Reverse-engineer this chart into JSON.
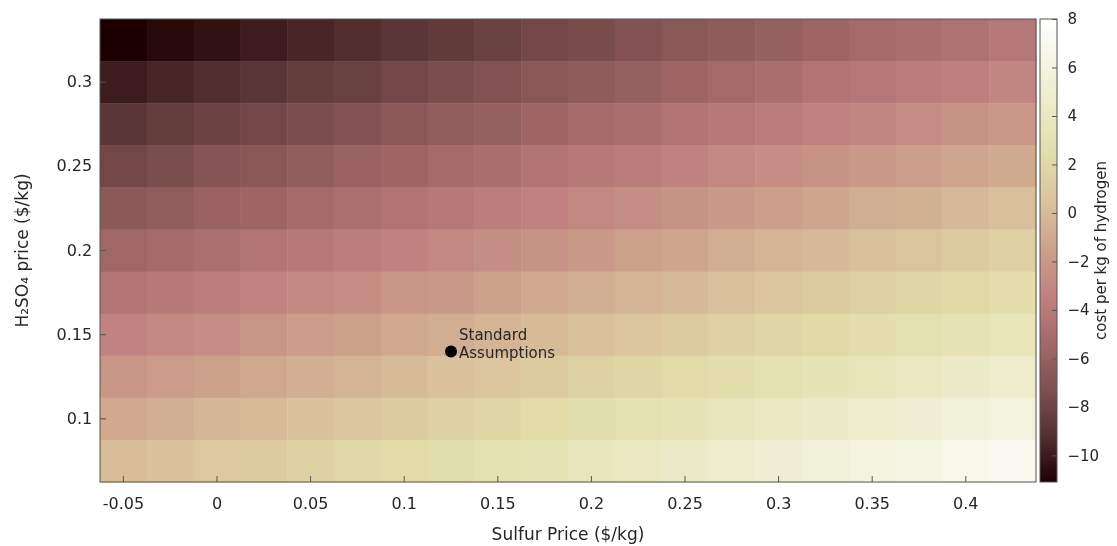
{
  "chart_data": {
    "type": "heatmap",
    "xlabel": "Sulfur Price ($/kg)",
    "ylabel": "H₂SO₄ price ($/kg)",
    "clabel": "cost per kg of hydrogen",
    "categories": [
      "-0.05",
      null,
      "0",
      null,
      "0.05",
      null,
      "0.1",
      null,
      "0.15",
      null,
      "0.2",
      null,
      "0.25",
      null,
      "0.3",
      null,
      "0.35",
      null,
      "0.4",
      null
    ],
    "y_categories": [
      null,
      "0.3",
      null,
      "0.25",
      null,
      "0.2",
      null,
      "0.15",
      null,
      "0.1",
      null
    ],
    "cells": [
      [
        -11.1,
        -10.7,
        -10.4,
        -10.0,
        -9.6,
        -9.3,
        -8.9,
        -8.6,
        -8.2,
        -7.8,
        -7.5,
        -7.1,
        -6.7,
        -6.4,
        -6.0,
        -5.7,
        -5.3,
        -4.9,
        -4.6,
        -4.2
      ],
      [
        -10.0,
        -9.6,
        -9.3,
        -8.9,
        -8.5,
        -8.2,
        -7.8,
        -7.4,
        -7.1,
        -6.7,
        -6.4,
        -6.0,
        -5.6,
        -5.3,
        -4.9,
        -4.5,
        -4.2,
        -3.8,
        -3.5,
        -3.1
      ],
      [
        -8.9,
        -8.5,
        -8.1,
        -7.8,
        -7.4,
        -7.1,
        -6.7,
        -6.3,
        -6.0,
        -5.6,
        -5.2,
        -4.9,
        -4.5,
        -4.1,
        -3.8,
        -3.4,
        -3.1,
        -2.7,
        -2.3,
        -2.0
      ],
      [
        -7.8,
        -7.4,
        -7.0,
        -6.7,
        -6.3,
        -5.9,
        -5.6,
        -5.2,
        -4.9,
        -4.5,
        -4.1,
        -3.8,
        -3.4,
        -3.0,
        -2.7,
        -2.3,
        -1.9,
        -1.6,
        -1.2,
        -0.9
      ],
      [
        -6.6,
        -6.3,
        -5.9,
        -5.6,
        -5.2,
        -4.8,
        -4.5,
        -4.1,
        -3.7,
        -3.4,
        -3.0,
        -2.6,
        -2.3,
        -1.9,
        -1.6,
        -1.2,
        -0.8,
        -0.5,
        -0.1,
        0.3
      ],
      [
        -5.5,
        -5.2,
        -4.8,
        -4.4,
        -4.1,
        -3.7,
        -3.4,
        -3.0,
        -2.6,
        -2.3,
        -1.9,
        -1.5,
        -1.2,
        -0.8,
        -0.4,
        -0.1,
        0.3,
        0.6,
        1.0,
        1.4
      ],
      [
        -4.4,
        -4.0,
        -3.7,
        -3.3,
        -3.0,
        -2.6,
        -2.2,
        -1.9,
        -1.5,
        -1.1,
        -0.8,
        -0.4,
        -0.1,
        0.3,
        0.7,
        1.0,
        1.4,
        1.8,
        2.1,
        2.5
      ],
      [
        -3.3,
        -2.9,
        -2.6,
        -2.2,
        -1.8,
        -1.5,
        -1.1,
        -0.8,
        -0.4,
        0.0,
        0.3,
        0.7,
        1.1,
        1.4,
        1.8,
        2.1,
        2.5,
        2.9,
        3.2,
        3.6
      ],
      [
        -2.2,
        -1.8,
        -1.5,
        -1.1,
        -0.7,
        -0.4,
        0.0,
        0.4,
        0.7,
        1.1,
        1.5,
        1.8,
        2.2,
        2.5,
        2.9,
        3.3,
        3.6,
        4.0,
        4.4,
        4.7
      ],
      [
        -1.1,
        -0.7,
        -0.3,
        0.0,
        0.4,
        0.7,
        1.1,
        1.5,
        1.8,
        2.2,
        2.6,
        2.9,
        3.3,
        3.7,
        4.0,
        4.4,
        4.7,
        5.1,
        5.5,
        5.8
      ],
      [
        0.1,
        0.4,
        0.8,
        1.1,
        1.5,
        1.9,
        2.2,
        2.6,
        3.0,
        3.3,
        3.7,
        4.0,
        4.4,
        4.8,
        5.1,
        5.5,
        5.9,
        6.2,
        6.6,
        7.0
      ]
    ],
    "clim": [
      -11.1,
      8
    ],
    "cticks": [
      -10,
      -8,
      -6,
      -4,
      -2,
      0,
      2,
      4,
      6,
      8
    ],
    "annotations": [
      "Standard Assumptions"
    ]
  }
}
